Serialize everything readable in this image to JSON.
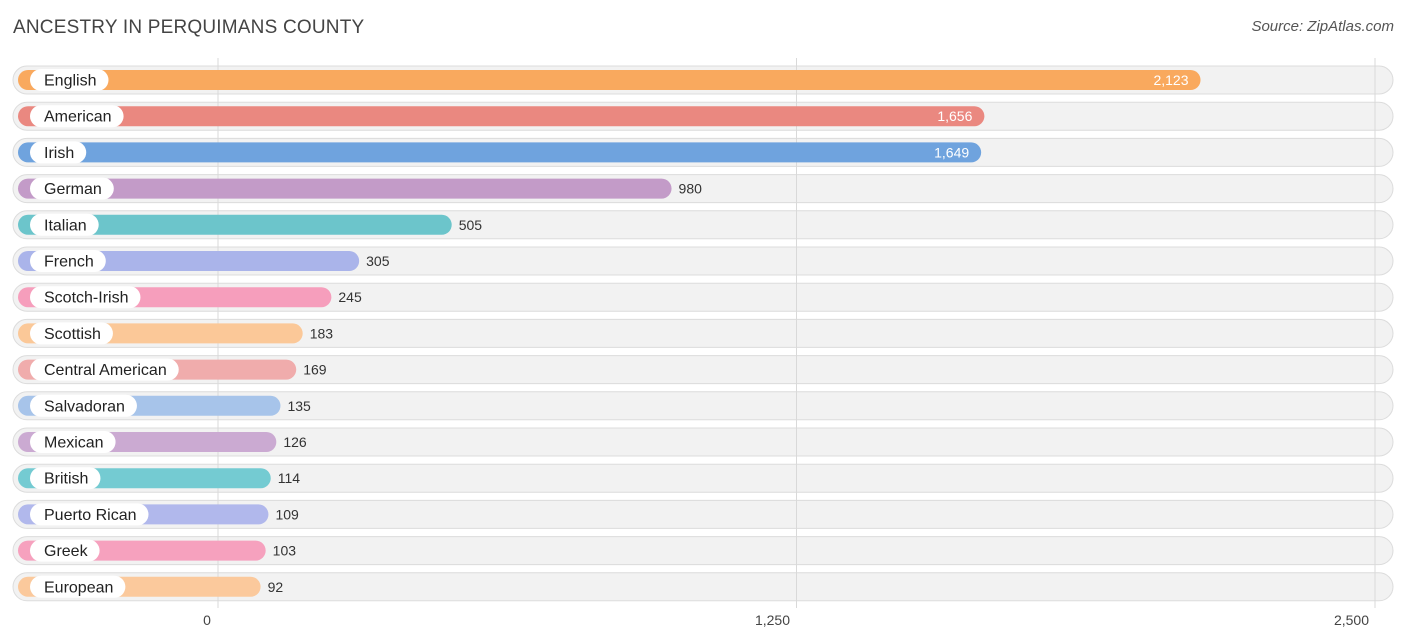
{
  "title": "ANCESTRY IN PERQUIMANS COUNTY",
  "source": "Source: ZipAtlas.com",
  "chart_data": {
    "type": "bar",
    "orientation": "horizontal",
    "title": "ANCESTRY IN PERQUIMANS COUNTY",
    "xlabel": "",
    "ylabel": "",
    "xlim": [
      0,
      2500
    ],
    "ticks": [
      0,
      1250,
      2500
    ],
    "tick_labels": [
      "0",
      "1,250",
      "2,500"
    ],
    "grid": true,
    "categories": [
      "English",
      "American",
      "Irish",
      "German",
      "Italian",
      "French",
      "Scotch-Irish",
      "Scottish",
      "Central American",
      "Salvadoran",
      "Mexican",
      "British",
      "Puerto Rican",
      "Greek",
      "European"
    ],
    "values": [
      2123,
      1656,
      1649,
      980,
      505,
      305,
      245,
      183,
      169,
      135,
      126,
      114,
      109,
      103,
      92
    ],
    "value_labels": [
      "2,123",
      "1,656",
      "1,649",
      "980",
      "505",
      "305",
      "245",
      "183",
      "169",
      "135",
      "126",
      "114",
      "109",
      "103",
      "92"
    ],
    "colors": [
      "#f9a95e",
      "#ea8880",
      "#6fa3de",
      "#c39bc8",
      "#6cc5cb",
      "#aab4ea",
      "#f69ebc",
      "#fbc898",
      "#f0acac",
      "#a7c4ea",
      "#cbaad2",
      "#74cbd2",
      "#b1b8ec",
      "#f6a1be",
      "#fbc99c"
    ]
  }
}
